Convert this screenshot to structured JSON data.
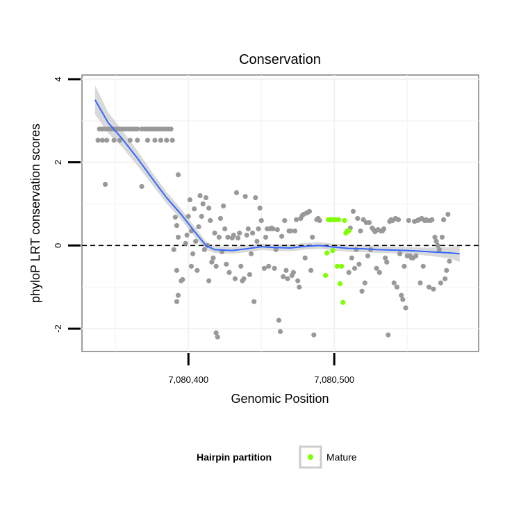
{
  "chart_data": {
    "type": "scatter",
    "title": "Conservation",
    "xlabel": "Genomic Position",
    "ylabel": "phyloP LRT conservation scores",
    "xlim": [
      7080327,
      7080599
    ],
    "ylim": [
      -2.55,
      4.1
    ],
    "x_ticks": [
      7080400,
      7080500
    ],
    "x_tick_labels": [
      "7,080,400",
      "7,080,500"
    ],
    "y_ticks": [
      -2,
      0,
      2,
      4
    ],
    "y_tick_labels": [
      "-2",
      "0",
      "2",
      "4"
    ],
    "grid": true,
    "reference_line": {
      "y": 0,
      "style": "dashed"
    },
    "legend": {
      "title": "Hairpin partition",
      "position": "bottom",
      "entries": [
        {
          "label": "Mature",
          "color": "#7FFF00"
        }
      ]
    },
    "colors": {
      "other": "#999999",
      "mature": "#7FFF00",
      "smooth": "#3366FF",
      "band": "#CCCCCC",
      "panel_border": "#7F7F7F",
      "grid": "#F2F2F2"
    },
    "series": [
      {
        "name": "Other",
        "color": "#999999",
        "points": [
          [
            7080338,
            2.53
          ],
          [
            7080341,
            2.53
          ],
          [
            7080344,
            2.53
          ],
          [
            7080349,
            2.53
          ],
          [
            7080353,
            2.53
          ],
          [
            7080360,
            2.53
          ],
          [
            7080365,
            2.53
          ],
          [
            7080372,
            2.53
          ],
          [
            7080377,
            2.53
          ],
          [
            7080381,
            2.53
          ],
          [
            7080385,
            2.53
          ],
          [
            7080389,
            2.53
          ],
          [
            7080339,
            2.8
          ],
          [
            7080341,
            2.8
          ],
          [
            7080343,
            2.8
          ],
          [
            7080345,
            2.8
          ],
          [
            7080347,
            2.8
          ],
          [
            7080349,
            2.8
          ],
          [
            7080351,
            2.8
          ],
          [
            7080353,
            2.8
          ],
          [
            7080355,
            2.8
          ],
          [
            7080357,
            2.8
          ],
          [
            7080359,
            2.8
          ],
          [
            7080361,
            2.8
          ],
          [
            7080363,
            2.8
          ],
          [
            7080365,
            2.8
          ],
          [
            7080368,
            2.8
          ],
          [
            7080370,
            2.8
          ],
          [
            7080372,
            2.8
          ],
          [
            7080374,
            2.8
          ],
          [
            7080376,
            2.8
          ],
          [
            7080378,
            2.8
          ],
          [
            7080380,
            2.8
          ],
          [
            7080382,
            2.8
          ],
          [
            7080384,
            2.8
          ],
          [
            7080386,
            2.8
          ],
          [
            7080388,
            2.8
          ],
          [
            7080343,
            1.47
          ],
          [
            7080368,
            1.42
          ],
          [
            7080393,
            1.7
          ],
          [
            7080390,
            -0.1
          ],
          [
            7080391,
            0.68
          ],
          [
            7080392,
            0.48
          ],
          [
            7080393,
            0.2
          ],
          [
            7080392,
            -0.6
          ],
          [
            7080393,
            -1.2
          ],
          [
            7080392,
            -1.35
          ],
          [
            7080395,
            -0.85
          ],
          [
            7080396,
            -0.82
          ],
          [
            7080398,
            0.05
          ],
          [
            7080399,
            0.25
          ],
          [
            7080400,
            0.7
          ],
          [
            7080401,
            1.1
          ],
          [
            7080402,
            0.35
          ],
          [
            7080402,
            -0.5
          ],
          [
            7080403,
            -0.2
          ],
          [
            7080404,
            0.88
          ],
          [
            7080405,
            0.1
          ],
          [
            7080406,
            -0.6
          ],
          [
            7080407,
            0.45
          ],
          [
            7080408,
            1.2
          ],
          [
            7080409,
            0.7
          ],
          [
            7080410,
            1.0
          ],
          [
            7080411,
            -0.1
          ],
          [
            7080412,
            1.15
          ],
          [
            7080413,
            0.0
          ],
          [
            7080414,
            0.9
          ],
          [
            7080414,
            -0.85
          ],
          [
            7080415,
            0.6
          ],
          [
            7080416,
            -0.4
          ],
          [
            7080417,
            -0.3
          ],
          [
            7080418,
            0.3
          ],
          [
            7080419,
            -0.5
          ],
          [
            7080419,
            -2.1
          ],
          [
            7080420,
            -2.2
          ],
          [
            7080421,
            0.2
          ],
          [
            7080422,
            0.65
          ],
          [
            7080423,
            -0.15
          ],
          [
            7080424,
            0.95
          ],
          [
            7080425,
            0.4
          ],
          [
            7080426,
            -0.45
          ],
          [
            7080427,
            0.2
          ],
          [
            7080428,
            -0.65
          ],
          [
            7080430,
            0.18
          ],
          [
            7080431,
            0.25
          ],
          [
            7080432,
            -0.8
          ],
          [
            7080433,
            1.27
          ],
          [
            7080434,
            0.18
          ],
          [
            7080435,
            0.3
          ],
          [
            7080436,
            -0.5
          ],
          [
            7080437,
            -0.85
          ],
          [
            7080438,
            -0.8
          ],
          [
            7080439,
            1.18
          ],
          [
            7080440,
            0.25
          ],
          [
            7080441,
            0.4
          ],
          [
            7080442,
            -0.7
          ],
          [
            7080443,
            -0.2
          ],
          [
            7080444,
            0.3
          ],
          [
            7080445,
            -1.35
          ],
          [
            7080446,
            1.15
          ],
          [
            7080447,
            0.1
          ],
          [
            7080448,
            0.4
          ],
          [
            7080449,
            0.9
          ],
          [
            7080450,
            0.6
          ],
          [
            7080452,
            -0.55
          ],
          [
            7080453,
            0.2
          ],
          [
            7080454,
            0.4
          ],
          [
            7080455,
            -0.5
          ],
          [
            7080456,
            0.4
          ],
          [
            7080457,
            0.42
          ],
          [
            7080458,
            0.4
          ],
          [
            7080459,
            -0.55
          ],
          [
            7080460,
            -0.1
          ],
          [
            7080461,
            0.38
          ],
          [
            7080462,
            -1.8
          ],
          [
            7080463,
            -2.07
          ],
          [
            7080464,
            0.22
          ],
          [
            7080465,
            -0.75
          ],
          [
            7080466,
            0.6
          ],
          [
            7080467,
            -0.6
          ],
          [
            7080468,
            -0.8
          ],
          [
            7080469,
            0.35
          ],
          [
            7080470,
            0.35
          ],
          [
            7080471,
            -0.72
          ],
          [
            7080472,
            -0.65
          ],
          [
            7080473,
            0.35
          ],
          [
            7080474,
            0.62
          ],
          [
            7080475,
            -0.85
          ],
          [
            7080476,
            -1.0
          ],
          [
            7080477,
            0.65
          ],
          [
            7080478,
            0.72
          ],
          [
            7080479,
            0.75
          ],
          [
            7080480,
            -0.3
          ],
          [
            7080481,
            0.78
          ],
          [
            7080482,
            0.8
          ],
          [
            7080483,
            0.82
          ],
          [
            7080484,
            -0.6
          ],
          [
            7080485,
            0.2
          ],
          [
            7080486,
            -2.15
          ],
          [
            7080488,
            0.62
          ],
          [
            7080489,
            0.65
          ],
          [
            7080490,
            0.6
          ],
          [
            7080510,
            -0.65
          ],
          [
            7080511,
            0.42
          ],
          [
            7080512,
            -0.3
          ],
          [
            7080513,
            0.82
          ],
          [
            7080514,
            -0.55
          ],
          [
            7080515,
            -0.1
          ],
          [
            7080516,
            0.65
          ],
          [
            7080517,
            -0.45
          ],
          [
            7080518,
            0.35
          ],
          [
            7080519,
            -1.1
          ],
          [
            7080520,
            0.62
          ],
          [
            7080521,
            -0.9
          ],
          [
            7080522,
            0.55
          ],
          [
            7080523,
            -0.25
          ],
          [
            7080524,
            0.55
          ],
          [
            7080525,
            -0.1
          ],
          [
            7080526,
            0.42
          ],
          [
            7080527,
            0.38
          ],
          [
            7080528,
            0.33
          ],
          [
            7080529,
            -0.55
          ],
          [
            7080530,
            0.38
          ],
          [
            7080531,
            -0.65
          ],
          [
            7080532,
            0.35
          ],
          [
            7080533,
            0.35
          ],
          [
            7080534,
            0.4
          ],
          [
            7080535,
            -0.3
          ],
          [
            7080536,
            -0.4
          ],
          [
            7080537,
            -2.15
          ],
          [
            7080538,
            0.58
          ],
          [
            7080539,
            0.62
          ],
          [
            7080540,
            0.6
          ],
          [
            7080541,
            -0.9
          ],
          [
            7080542,
            0.65
          ],
          [
            7080543,
            -1.0
          ],
          [
            7080544,
            0.62
          ],
          [
            7080545,
            -0.2
          ],
          [
            7080546,
            -1.2
          ],
          [
            7080547,
            -1.3
          ],
          [
            7080548,
            -0.5
          ],
          [
            7080549,
            -1.5
          ],
          [
            7080550,
            -0.25
          ],
          [
            7080551,
            0.6
          ],
          [
            7080552,
            -0.25
          ],
          [
            7080553,
            -0.3
          ],
          [
            7080554,
            -0.3
          ],
          [
            7080555,
            0.58
          ],
          [
            7080556,
            -0.25
          ],
          [
            7080557,
            0.6
          ],
          [
            7080558,
            0.62
          ],
          [
            7080559,
            -0.9
          ],
          [
            7080560,
            0.65
          ],
          [
            7080561,
            -0.5
          ],
          [
            7080562,
            0.6
          ],
          [
            7080563,
            0.62
          ],
          [
            7080564,
            0.6
          ],
          [
            7080565,
            -1.0
          ],
          [
            7080566,
            0.6
          ],
          [
            7080567,
            0.62
          ],
          [
            7080568,
            -1.05
          ],
          [
            7080569,
            0.2
          ],
          [
            7080570,
            0.1
          ],
          [
            7080571,
            0.0
          ],
          [
            7080572,
            -0.1
          ],
          [
            7080573,
            -0.9
          ],
          [
            7080574,
            0.2
          ],
          [
            7080575,
            0.62
          ],
          [
            7080576,
            -0.8
          ],
          [
            7080577,
            -0.6
          ],
          [
            7080578,
            0.75
          ],
          [
            7080579,
            -0.38
          ]
        ]
      },
      {
        "name": "Mature",
        "color": "#7FFF00",
        "points": [
          [
            7080494,
            -0.72
          ],
          [
            7080495,
            -0.18
          ],
          [
            7080496,
            0.62
          ],
          [
            7080497,
            0.62
          ],
          [
            7080498,
            0.62
          ],
          [
            7080499,
            -0.12
          ],
          [
            7080500,
            0.62
          ],
          [
            7080501,
            0.62
          ],
          [
            7080502,
            -0.5
          ],
          [
            7080503,
            0.62
          ],
          [
            7080504,
            -0.92
          ],
          [
            7080505,
            -0.5
          ],
          [
            7080506,
            -1.37
          ],
          [
            7080507,
            0.6
          ],
          [
            7080508,
            0.3
          ],
          [
            7080509,
            0.35
          ],
          [
            7080510,
            0.35
          ]
        ]
      }
    ],
    "smooth": [
      [
        7080336,
        3.5
      ],
      [
        7080345,
        2.95
      ],
      [
        7080355,
        2.55
      ],
      [
        7080365,
        2.1
      ],
      [
        7080375,
        1.62
      ],
      [
        7080385,
        1.15
      ],
      [
        7080395,
        0.75
      ],
      [
        7080405,
        0.3
      ],
      [
        7080412,
        0.0
      ],
      [
        7080418,
        -0.1
      ],
      [
        7080430,
        -0.12
      ],
      [
        7080440,
        -0.08
      ],
      [
        7080450,
        -0.03
      ],
      [
        7080460,
        -0.05
      ],
      [
        7080470,
        -0.06
      ],
      [
        7080480,
        -0.02
      ],
      [
        7080490,
        0.0
      ],
      [
        7080500,
        -0.04
      ],
      [
        7080510,
        -0.07
      ],
      [
        7080520,
        -0.08
      ],
      [
        7080530,
        -0.1
      ],
      [
        7080540,
        -0.11
      ],
      [
        7080550,
        -0.12
      ],
      [
        7080560,
        -0.14
      ],
      [
        7080570,
        -0.16
      ],
      [
        7080580,
        -0.18
      ],
      [
        7080586,
        -0.2
      ]
    ],
    "smooth_se": [
      0.35,
      0.25,
      0.2,
      0.18,
      0.15,
      0.14,
      0.13,
      0.12,
      0.1,
      0.08,
      0.08,
      0.08,
      0.08,
      0.08,
      0.08,
      0.08,
      0.08,
      0.08,
      0.08,
      0.08,
      0.08,
      0.08,
      0.08,
      0.09,
      0.11,
      0.14,
      0.2
    ]
  }
}
